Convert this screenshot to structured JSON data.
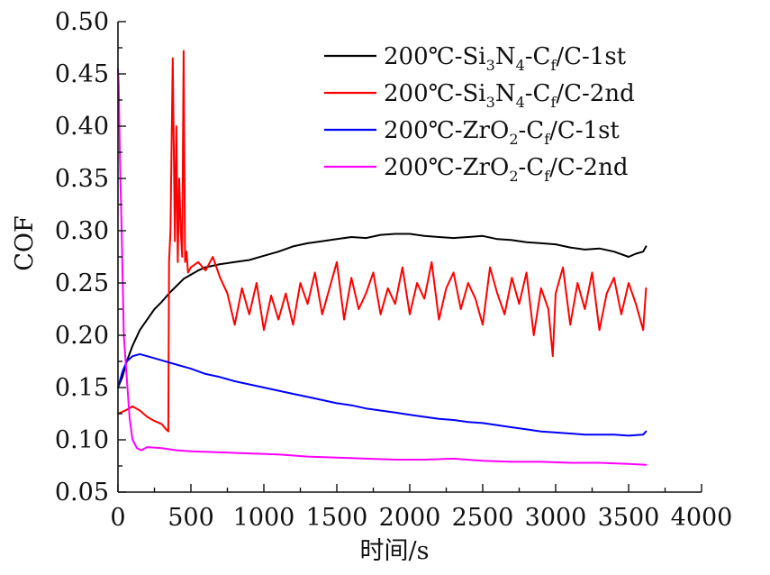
{
  "chart_data": {
    "type": "line",
    "xlabel": "时间/s",
    "ylabel": "COF",
    "xlim": [
      0,
      4000
    ],
    "ylim": [
      0.05,
      0.5
    ],
    "xticks": [
      0,
      500,
      1000,
      1500,
      2000,
      2500,
      3000,
      3500,
      4000
    ],
    "yticks": [
      "0.05",
      "0.10",
      "0.15",
      "0.20",
      "0.25",
      "0.30",
      "0.35",
      "0.40",
      "0.45",
      "0.50"
    ],
    "legend_position": "top-right",
    "grid": false,
    "series": [
      {
        "name": "200℃-Si3N4-Cf/C-1st",
        "legend_parts": [
          {
            "t": "200℃-Si",
            "sub": false
          },
          {
            "t": "3",
            "sub": true
          },
          {
            "t": "N",
            "sub": false
          },
          {
            "t": "4",
            "sub": true
          },
          {
            "t": "-C",
            "sub": false
          },
          {
            "t": "f",
            "sub": true
          },
          {
            "t": "/C-1st",
            "sub": false
          }
        ],
        "color": "#000000",
        "x": [
          0,
          30,
          60,
          100,
          150,
          200,
          250,
          300,
          350,
          400,
          450,
          500,
          550,
          600,
          700,
          800,
          900,
          1000,
          1100,
          1200,
          1300,
          1400,
          1500,
          1600,
          1700,
          1800,
          1900,
          2000,
          2100,
          2200,
          2300,
          2400,
          2500,
          2600,
          2700,
          2800,
          2900,
          3000,
          3100,
          3200,
          3300,
          3400,
          3500,
          3550,
          3600,
          3620
        ],
        "y": [
          0.15,
          0.16,
          0.175,
          0.19,
          0.205,
          0.215,
          0.225,
          0.232,
          0.24,
          0.247,
          0.254,
          0.258,
          0.262,
          0.265,
          0.268,
          0.27,
          0.272,
          0.276,
          0.28,
          0.285,
          0.288,
          0.29,
          0.292,
          0.294,
          0.293,
          0.296,
          0.297,
          0.297,
          0.295,
          0.294,
          0.293,
          0.294,
          0.295,
          0.292,
          0.291,
          0.289,
          0.288,
          0.287,
          0.284,
          0.282,
          0.283,
          0.28,
          0.275,
          0.278,
          0.28,
          0.285
        ]
      },
      {
        "name": "200℃-Si3N4-Cf/C-2nd",
        "legend_parts": [
          {
            "t": "200℃-Si",
            "sub": false
          },
          {
            "t": "3",
            "sub": true
          },
          {
            "t": "N",
            "sub": false
          },
          {
            "t": "4",
            "sub": true
          },
          {
            "t": "-C",
            "sub": false
          },
          {
            "t": "f",
            "sub": true
          },
          {
            "t": "/C-2nd",
            "sub": false
          }
        ],
        "color": "#ff0000",
        "x": [
          0,
          50,
          100,
          150,
          200,
          250,
          300,
          330,
          345,
          350,
          360,
          375,
          390,
          400,
          410,
          420,
          430,
          440,
          450,
          460,
          470,
          480,
          500,
          550,
          600,
          650,
          700,
          750,
          800,
          850,
          900,
          950,
          1000,
          1050,
          1100,
          1150,
          1200,
          1250,
          1300,
          1350,
          1400,
          1450,
          1500,
          1550,
          1600,
          1650,
          1700,
          1750,
          1800,
          1850,
          1900,
          1950,
          2000,
          2050,
          2100,
          2150,
          2200,
          2250,
          2300,
          2350,
          2400,
          2450,
          2500,
          2550,
          2600,
          2650,
          2700,
          2750,
          2800,
          2850,
          2900,
          2950,
          2980,
          3000,
          3050,
          3100,
          3150,
          3200,
          3250,
          3300,
          3350,
          3400,
          3450,
          3500,
          3550,
          3600,
          3620
        ],
        "y": [
          0.125,
          0.128,
          0.132,
          0.128,
          0.122,
          0.118,
          0.115,
          0.11,
          0.108,
          0.27,
          0.3,
          0.465,
          0.29,
          0.4,
          0.27,
          0.35,
          0.3,
          0.275,
          0.472,
          0.27,
          0.28,
          0.26,
          0.265,
          0.27,
          0.262,
          0.275,
          0.255,
          0.24,
          0.21,
          0.245,
          0.22,
          0.25,
          0.205,
          0.238,
          0.215,
          0.24,
          0.21,
          0.25,
          0.23,
          0.26,
          0.22,
          0.245,
          0.27,
          0.215,
          0.255,
          0.225,
          0.24,
          0.26,
          0.22,
          0.245,
          0.23,
          0.265,
          0.22,
          0.25,
          0.235,
          0.27,
          0.215,
          0.245,
          0.26,
          0.225,
          0.25,
          0.235,
          0.21,
          0.265,
          0.24,
          0.22,
          0.255,
          0.23,
          0.26,
          0.2,
          0.245,
          0.225,
          0.18,
          0.24,
          0.265,
          0.21,
          0.25,
          0.225,
          0.26,
          0.205,
          0.24,
          0.255,
          0.22,
          0.25,
          0.23,
          0.205,
          0.245
        ]
      },
      {
        "name": "200℃-ZrO2-Cf/C-1st",
        "legend_parts": [
          {
            "t": "200℃-ZrO",
            "sub": false
          },
          {
            "t": "2",
            "sub": true
          },
          {
            "t": "-C",
            "sub": false
          },
          {
            "t": "f",
            "sub": true
          },
          {
            "t": "/C-1st",
            "sub": false
          }
        ],
        "color": "#0000ff",
        "x": [
          0,
          30,
          60,
          100,
          150,
          200,
          300,
          400,
          500,
          600,
          700,
          800,
          900,
          1000,
          1100,
          1200,
          1300,
          1400,
          1500,
          1600,
          1700,
          1800,
          1900,
          2000,
          2100,
          2200,
          2300,
          2400,
          2500,
          2600,
          2700,
          2800,
          2900,
          3000,
          3100,
          3200,
          3300,
          3400,
          3500,
          3600,
          3620
        ],
        "y": [
          0.15,
          0.165,
          0.175,
          0.18,
          0.182,
          0.18,
          0.176,
          0.172,
          0.168,
          0.163,
          0.16,
          0.156,
          0.153,
          0.15,
          0.147,
          0.144,
          0.141,
          0.138,
          0.135,
          0.133,
          0.13,
          0.128,
          0.126,
          0.124,
          0.122,
          0.12,
          0.119,
          0.117,
          0.116,
          0.114,
          0.112,
          0.11,
          0.108,
          0.107,
          0.106,
          0.105,
          0.105,
          0.105,
          0.104,
          0.105,
          0.108
        ]
      },
      {
        "name": "200℃-ZrO2-Cf/C-2nd",
        "legend_parts": [
          {
            "t": "200℃-ZrO",
            "sub": false
          },
          {
            "t": "2",
            "sub": true
          },
          {
            "t": "-C",
            "sub": false
          },
          {
            "t": "f",
            "sub": true
          },
          {
            "t": "/C-2nd",
            "sub": false
          }
        ],
        "color": "#ff00ff",
        "x": [
          0,
          5,
          15,
          25,
          40,
          60,
          80,
          100,
          130,
          160,
          200,
          300,
          400,
          500,
          700,
          900,
          1100,
          1300,
          1500,
          1700,
          1900,
          2100,
          2300,
          2500,
          2700,
          2900,
          3100,
          3300,
          3500,
          3620
        ],
        "y": [
          0.455,
          0.44,
          0.36,
          0.3,
          0.2,
          0.16,
          0.12,
          0.1,
          0.092,
          0.09,
          0.093,
          0.092,
          0.09,
          0.089,
          0.088,
          0.087,
          0.086,
          0.084,
          0.083,
          0.082,
          0.081,
          0.081,
          0.082,
          0.08,
          0.079,
          0.079,
          0.078,
          0.078,
          0.077,
          0.076
        ]
      }
    ]
  }
}
